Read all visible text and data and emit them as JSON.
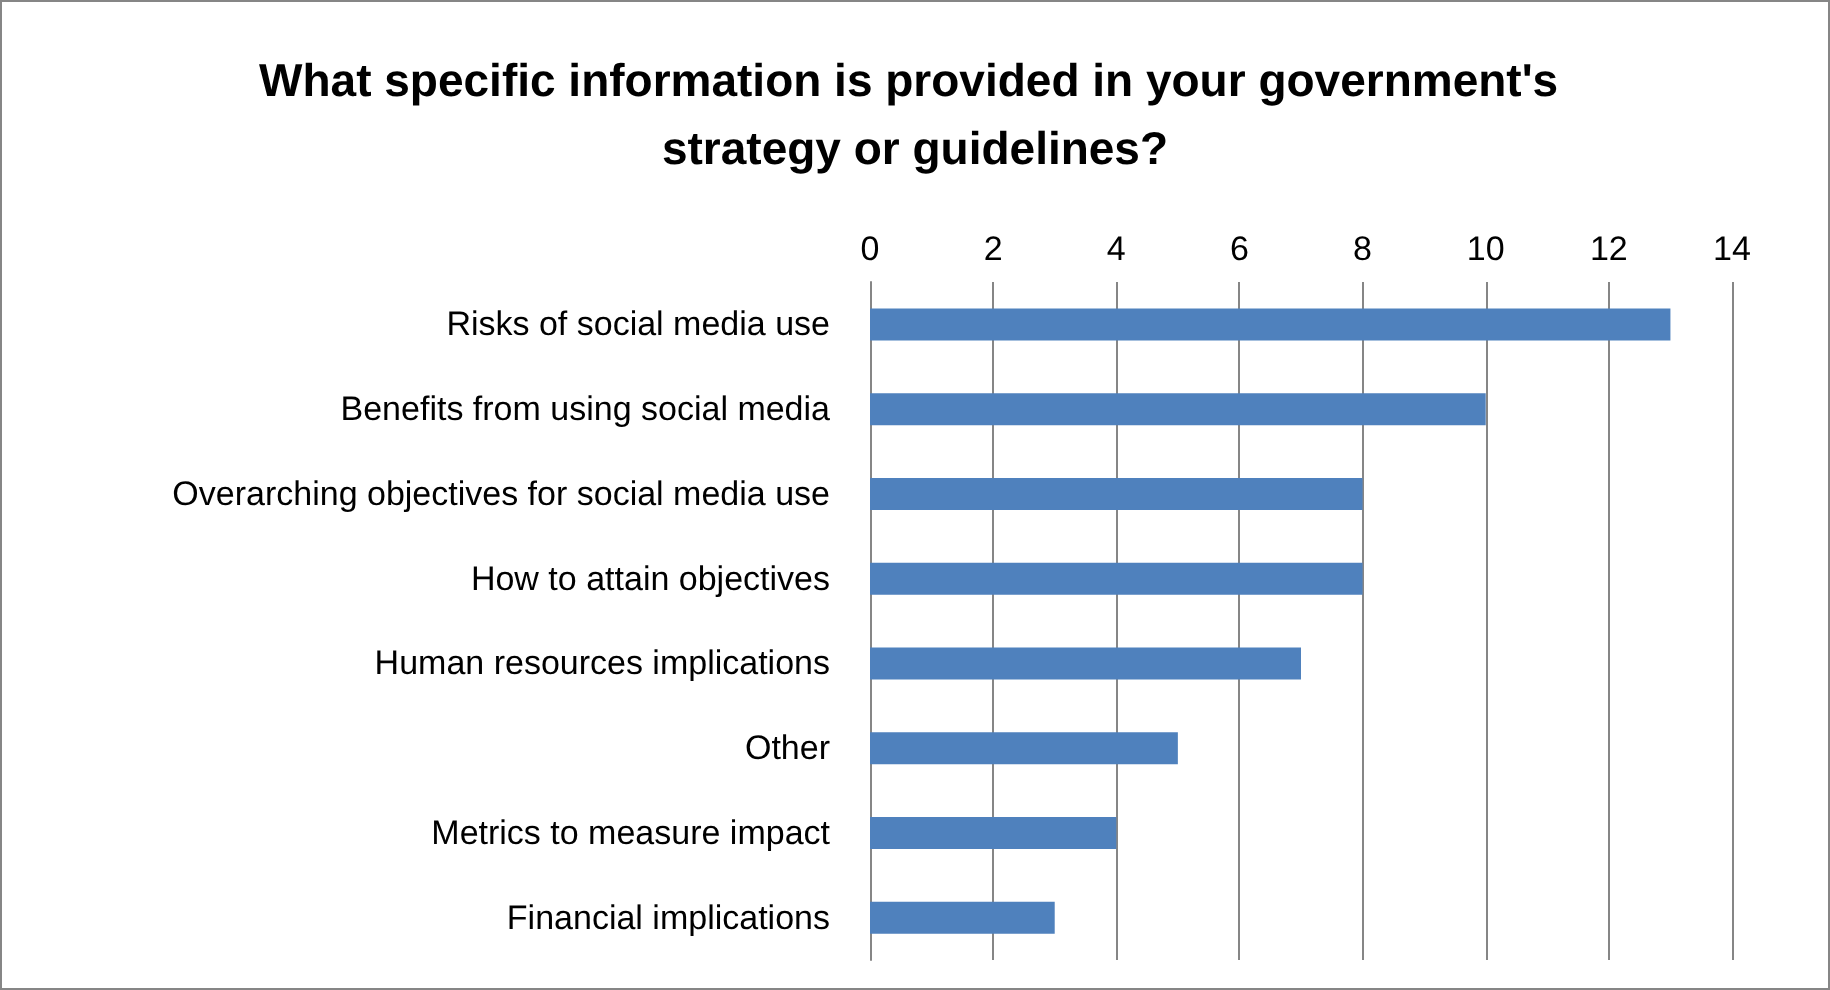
{
  "chart_data": {
    "type": "bar",
    "orientation": "horizontal",
    "title": "What specific information is provided in your government's strategy or guidelines?",
    "categories": [
      "Risks of social media use",
      "Benefits from using social media",
      "Overarching objectives for social media use",
      "How to attain objectives",
      "Human resources implications",
      "Other",
      "Metrics to measure impact",
      "Financial implications"
    ],
    "values": [
      13,
      10,
      8,
      8,
      7,
      5,
      4,
      3
    ],
    "color": "#4f81bd",
    "xlim": [
      0,
      14
    ],
    "xticks": [
      0,
      2,
      4,
      6,
      8,
      10,
      12,
      14
    ],
    "grid": "x"
  }
}
